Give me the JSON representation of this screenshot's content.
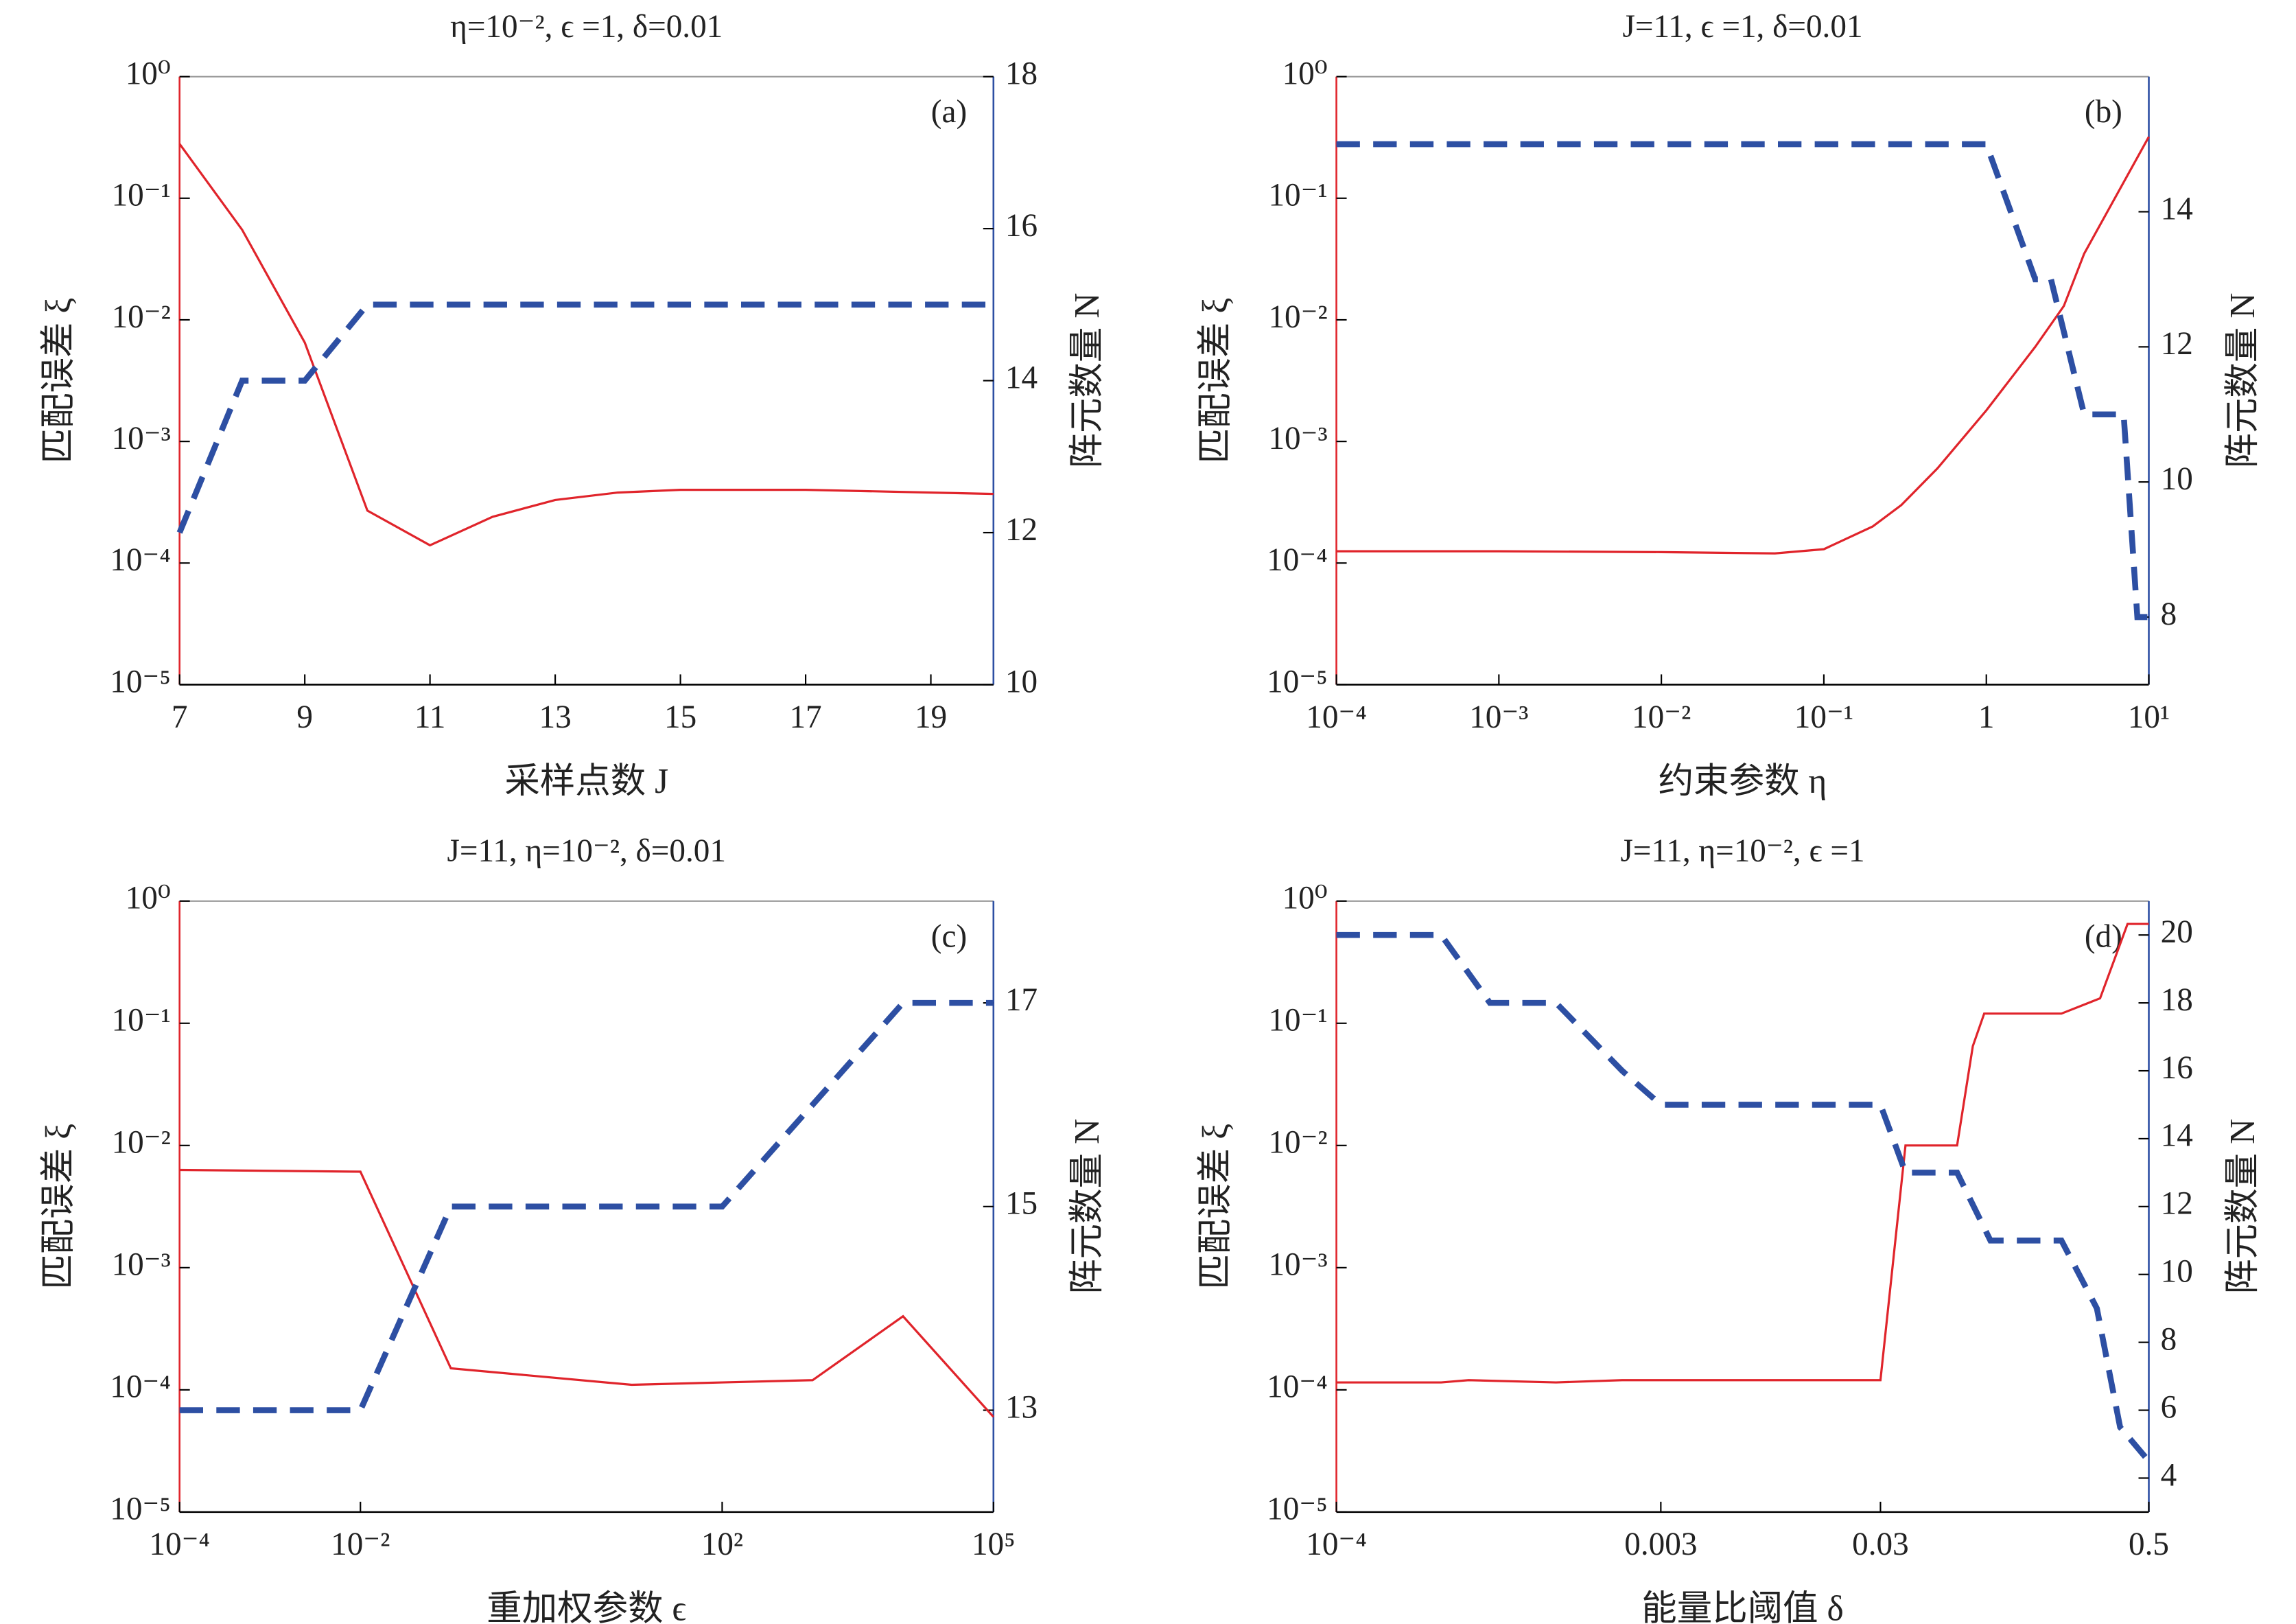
{
  "chart_data": [
    {
      "type": "line",
      "title": "η=10⁻², ϵ =1, δ=0.01",
      "panel": "(a)",
      "xlabel": "采样点数 J",
      "ylabel": "匹配误差 ξ",
      "y2label": "阵元数量 N",
      "xlog": false,
      "ylog": true,
      "xlim": [
        7,
        20
      ],
      "xticks": [
        7,
        9,
        11,
        13,
        15,
        17,
        19
      ],
      "ylim": [
        1e-05,
        1
      ],
      "yticks": [
        {
          "value": 1e-05,
          "label": "10⁻⁵"
        },
        {
          "value": 0.0001,
          "label": "10⁻⁴"
        },
        {
          "value": 0.001,
          "label": "10⁻³"
        },
        {
          "value": 0.01,
          "label": "10⁻²"
        },
        {
          "value": 0.1,
          "label": "10⁻¹"
        },
        {
          "value": 1,
          "label": "10⁰"
        }
      ],
      "y2lim": [
        10,
        18
      ],
      "y2ticks": [
        10,
        12,
        14,
        16,
        18
      ],
      "series": [
        {
          "color": "#e0242b",
          "style": "solid",
          "axis": "y",
          "x": [
            7,
            8,
            9,
            10,
            11,
            12,
            13,
            14,
            15,
            16,
            17,
            18,
            19,
            20
          ],
          "values": [
            0.28,
            0.055,
            0.0065,
            0.00027,
            0.00014,
            0.00024,
            0.00033,
            0.00038,
            0.0004,
            0.0004,
            0.0004,
            0.00039,
            0.00038,
            0.00037
          ]
        },
        {
          "color": "#2d4fa3",
          "style": "dashed",
          "axis": "y2",
          "x": [
            7,
            8,
            9,
            10,
            11,
            12,
            13,
            14,
            15,
            16,
            17,
            18,
            19,
            20
          ],
          "values": [
            12,
            14,
            14,
            15,
            15,
            15,
            15,
            15,
            15,
            15,
            15,
            15,
            15,
            15
          ]
        }
      ]
    },
    {
      "type": "line",
      "title": "J=11, ϵ =1, δ=0.01",
      "panel": "(b)",
      "xlabel": "约束参数 η",
      "ylabel": "匹配误差 ξ",
      "y2label": "阵元数量 N",
      "xlog": true,
      "ylog": true,
      "xlim": [
        0.0001,
        10
      ],
      "xticks": [
        {
          "value": 0.0001,
          "label": "10⁻⁴"
        },
        {
          "value": 0.001,
          "label": "10⁻³"
        },
        {
          "value": 0.01,
          "label": "10⁻²"
        },
        {
          "value": 0.1,
          "label": "10⁻¹"
        },
        1,
        {
          "value": 10,
          "label": "10¹"
        }
      ],
      "ylim": [
        1e-05,
        1
      ],
      "yticks": [
        {
          "value": 1e-05,
          "label": "10⁻⁵"
        },
        {
          "value": 0.0001,
          "label": "10⁻⁴"
        },
        {
          "value": 0.001,
          "label": "10⁻³"
        },
        {
          "value": 0.01,
          "label": "10⁻²"
        },
        {
          "value": 0.1,
          "label": "10⁻¹"
        },
        {
          "value": 1,
          "label": "10⁰"
        }
      ],
      "y2lim": [
        7,
        16
      ],
      "y2ticks": [
        8,
        10,
        12,
        14
      ],
      "series": [
        {
          "color": "#e0242b",
          "style": "solid",
          "axis": "y",
          "x": [
            0.0001,
            0.001,
            0.01,
            0.05,
            0.1,
            0.2,
            0.3,
            0.5,
            1,
            2,
            3,
            4,
            10
          ],
          "values": [
            0.000125,
            0.000125,
            0.000123,
            0.00012,
            0.00013,
            0.0002,
            0.0003,
            0.0006,
            0.0018,
            0.006,
            0.013,
            0.035,
            0.32
          ]
        },
        {
          "color": "#2d4fa3",
          "style": "dashed",
          "axis": "y2",
          "x": [
            0.0001,
            1,
            2,
            2.5,
            4,
            7,
            8.5,
            10
          ],
          "values": [
            15,
            15,
            13,
            13,
            11,
            11,
            8,
            8
          ]
        }
      ]
    },
    {
      "type": "line",
      "title": "J=11, η=10⁻², δ=0.01",
      "panel": "(c)",
      "xlabel": "重加权参数 ϵ",
      "ylabel": "匹配误差 ξ",
      "y2label": "阵元数量 N",
      "xlog": true,
      "ylog": true,
      "xlim": [
        0.0001,
        100000
      ],
      "xticks": [
        {
          "value": 0.0001,
          "label": "10⁻⁴"
        },
        {
          "value": 0.01,
          "label": "10⁻²"
        },
        {
          "value": 100,
          "label": "10²"
        },
        {
          "value": 100000,
          "label": "10⁵"
        }
      ],
      "ylim": [
        1e-05,
        1
      ],
      "yticks": [
        {
          "value": 1e-05,
          "label": "10⁻⁵"
        },
        {
          "value": 0.0001,
          "label": "10⁻⁴"
        },
        {
          "value": 0.001,
          "label": "10⁻³"
        },
        {
          "value": 0.01,
          "label": "10⁻²"
        },
        {
          "value": 0.1,
          "label": "10⁻¹"
        },
        {
          "value": 1,
          "label": "10⁰"
        }
      ],
      "y2lim": [
        12,
        18
      ],
      "y2ticks": [
        13,
        15,
        17
      ],
      "series": [
        {
          "color": "#e0242b",
          "style": "solid",
          "axis": "y",
          "x": [
            0.0001,
            0.01,
            0.1,
            10,
            100,
            1000,
            10000,
            100000
          ],
          "values": [
            0.0063,
            0.0061,
            0.00015,
            0.00011,
            0.000115,
            0.00012,
            0.0004,
            6e-05
          ]
        },
        {
          "color": "#2d4fa3",
          "style": "dashed",
          "axis": "y2",
          "x": [
            0.0001,
            0.01,
            0.1,
            100,
            10000,
            100000
          ],
          "values": [
            13,
            13,
            15,
            15,
            17,
            17
          ]
        }
      ]
    },
    {
      "type": "line",
      "title": "J=11, η=10⁻², ϵ =1",
      "panel": "(d)",
      "xlabel": "能量比阈值 δ",
      "ylabel": "匹配误差 ξ",
      "y2label": "阵元数量 N",
      "xlog": true,
      "ylog": true,
      "xlim": [
        0.0001,
        0.5
      ],
      "xticks": [
        {
          "value": 0.0001,
          "label": "10⁻⁴"
        },
        0.003,
        0.03,
        0.5
      ],
      "ylim": [
        1e-05,
        1
      ],
      "yticks": [
        {
          "value": 1e-05,
          "label": "10⁻⁵"
        },
        {
          "value": 0.0001,
          "label": "10⁻⁴"
        },
        {
          "value": 0.001,
          "label": "10⁻³"
        },
        {
          "value": 0.01,
          "label": "10⁻²"
        },
        {
          "value": 0.1,
          "label": "10⁻¹"
        },
        {
          "value": 1,
          "label": "10⁰"
        }
      ],
      "y2lim": [
        3,
        21
      ],
      "y2ticks": [
        4,
        6,
        8,
        10,
        12,
        14,
        16,
        18,
        20
      ],
      "series": [
        {
          "color": "#e0242b",
          "style": "solid",
          "axis": "y",
          "x": [
            0.0001,
            0.0003,
            0.0004,
            0.001,
            0.002,
            0.01,
            0.03,
            0.039,
            0.067,
            0.079,
            0.089,
            0.2,
            0.3,
            0.4,
            0.5
          ],
          "values": [
            0.000115,
            0.000115,
            0.00012,
            0.000115,
            0.00012,
            0.00012,
            0.00012,
            0.01,
            0.01,
            0.065,
            0.12,
            0.12,
            0.16,
            0.65,
            0.65
          ]
        },
        {
          "color": "#2d4fa3",
          "style": "dashed",
          "axis": "y2",
          "x": [
            0.0001,
            0.0003,
            0.0005,
            0.001,
            0.002,
            0.003,
            0.03,
            0.039,
            0.067,
            0.095,
            0.2,
            0.29,
            0.37,
            0.5
          ],
          "values": [
            20,
            20,
            18,
            18,
            16,
            15,
            15,
            13,
            13,
            11,
            11,
            9,
            5.5,
            4.5
          ]
        }
      ]
    }
  ]
}
